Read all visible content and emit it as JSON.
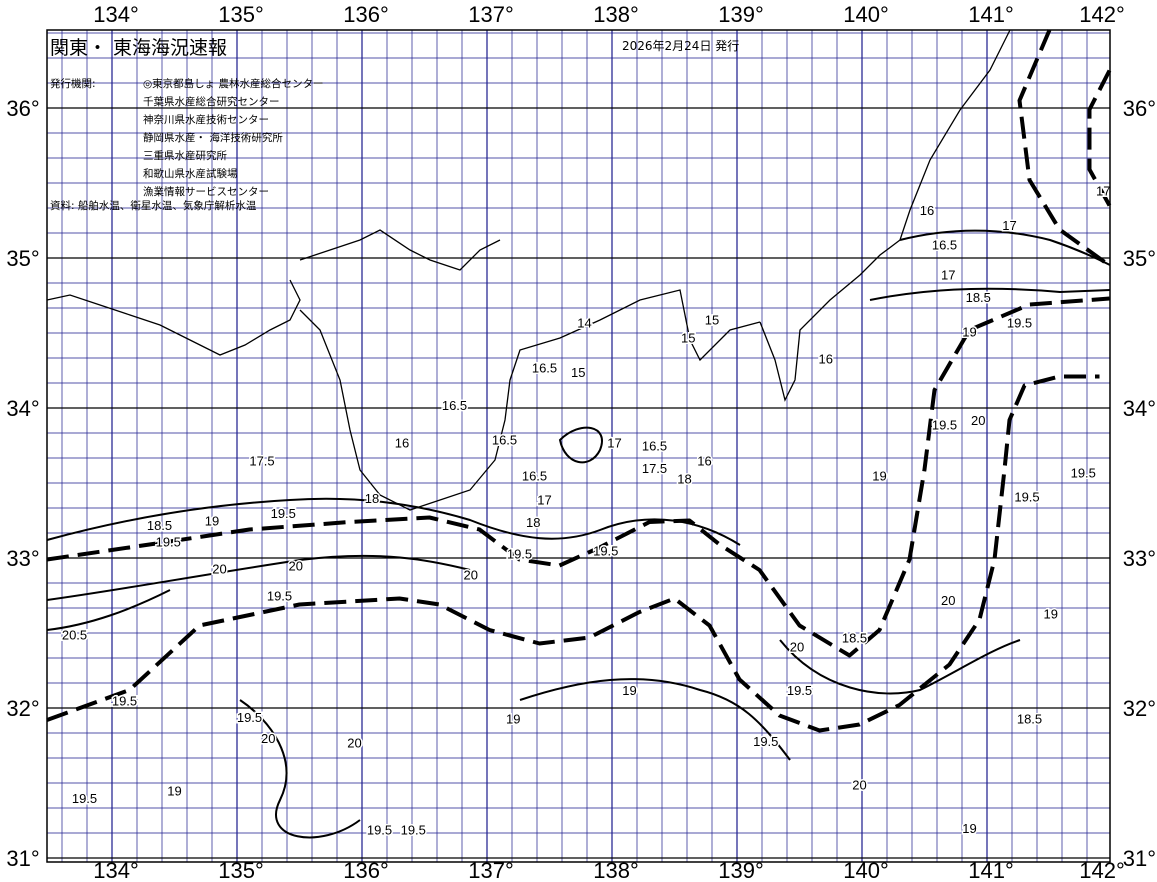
{
  "header": {
    "title": "関東・ 東海海況速報",
    "issue_date": "2026年2月24日 発行",
    "issuer_label": "発行機関:",
    "issuers": [
      "◎東京都島しょ 農林水産総合センター",
      "千葉県水産総合研究センター",
      "神奈川県水産技術センター",
      "静岡県水産・ 海洋技術研究所",
      "三重県水産研究所",
      "和歌山県水産試験場",
      "漁業情報サービスセンター"
    ],
    "sources": "資料: 船舶水温、衛星水温、気象庁解析水温"
  },
  "map": {
    "lon_range": [
      133.48,
      142.0
    ],
    "lat_range": [
      30.99,
      36.52
    ],
    "lon_labels": [
      "134°",
      "135°",
      "136°",
      "137°",
      "138°",
      "139°",
      "140°",
      "141°",
      "142°"
    ],
    "lon_values": [
      134,
      135,
      136,
      137,
      138,
      139,
      140,
      141,
      142
    ],
    "lat_labels": [
      "36°",
      "35°",
      "34°",
      "33°",
      "32°",
      "31°"
    ],
    "lat_values": [
      36,
      35,
      34,
      33,
      32,
      31
    ],
    "grid_color": "#1a1a8c",
    "kuroshio_paths": [
      [
        [
          133.48,
          31.92
        ],
        [
          134.14,
          32.12
        ],
        [
          134.7,
          32.55
        ],
        [
          135.5,
          32.69
        ],
        [
          136.3,
          32.73
        ],
        [
          136.62,
          32.69
        ],
        [
          137.02,
          32.52
        ],
        [
          137.42,
          32.43
        ],
        [
          137.82,
          32.47
        ],
        [
          138.22,
          32.64
        ],
        [
          138.5,
          32.73
        ],
        [
          138.78,
          32.55
        ],
        [
          139.02,
          32.19
        ],
        [
          139.34,
          31.95
        ],
        [
          139.66,
          31.85
        ],
        [
          139.98,
          31.89
        ],
        [
          140.3,
          32.02
        ],
        [
          140.7,
          32.29
        ],
        [
          140.94,
          32.59
        ],
        [
          141.06,
          32.99
        ],
        [
          141.14,
          33.59
        ],
        [
          141.18,
          33.92
        ],
        [
          141.3,
          34.15
        ],
        [
          141.58,
          34.21
        ],
        [
          141.9,
          34.21
        ]
      ],
      [
        [
          133.48,
          32.99
        ],
        [
          134.3,
          33.09
        ],
        [
          135.1,
          33.19
        ],
        [
          135.9,
          33.24
        ],
        [
          136.54,
          33.27
        ],
        [
          136.94,
          33.19
        ],
        [
          137.26,
          32.99
        ],
        [
          137.58,
          32.95
        ],
        [
          137.9,
          33.07
        ],
        [
          138.3,
          33.24
        ],
        [
          138.62,
          33.25
        ],
        [
          138.86,
          33.09
        ],
        [
          139.18,
          32.92
        ],
        [
          139.5,
          32.55
        ],
        [
          139.9,
          32.35
        ],
        [
          140.14,
          32.52
        ],
        [
          140.38,
          32.99
        ],
        [
          140.5,
          33.59
        ],
        [
          140.58,
          34.12
        ],
        [
          140.86,
          34.52
        ],
        [
          141.34,
          34.69
        ],
        [
          141.98,
          34.73
        ]
      ],
      [
        [
          141.5,
          36.52
        ],
        [
          141.26,
          36.05
        ],
        [
          141.34,
          35.52
        ],
        [
          141.58,
          35.19
        ],
        [
          141.98,
          34.95
        ]
      ],
      [
        [
          141.98,
          36.25
        ],
        [
          141.82,
          35.99
        ],
        [
          141.82,
          35.59
        ],
        [
          141.98,
          35.35
        ]
      ]
    ],
    "isotherm_labels": [
      {
        "t": "14",
        "lon": 137.78,
        "lat": 34.57
      },
      {
        "t": "15",
        "lon": 138.61,
        "lat": 34.47
      },
      {
        "t": "15",
        "lon": 138.8,
        "lat": 34.59
      },
      {
        "t": "16",
        "lon": 139.71,
        "lat": 34.33
      },
      {
        "t": "16.5",
        "lon": 137.46,
        "lat": 34.27
      },
      {
        "t": "15",
        "lon": 137.73,
        "lat": 34.24
      },
      {
        "t": "16.5",
        "lon": 136.74,
        "lat": 34.02
      },
      {
        "t": "16",
        "lon": 136.32,
        "lat": 33.77
      },
      {
        "t": "16.5",
        "lon": 137.14,
        "lat": 33.79
      },
      {
        "t": "17.5",
        "lon": 135.2,
        "lat": 33.65
      },
      {
        "t": "17",
        "lon": 138.02,
        "lat": 33.77
      },
      {
        "t": "16.5",
        "lon": 138.34,
        "lat": 33.75
      },
      {
        "t": "17.5",
        "lon": 138.34,
        "lat": 33.6
      },
      {
        "t": "16",
        "lon": 138.74,
        "lat": 33.65
      },
      {
        "t": "18",
        "lon": 138.58,
        "lat": 33.53
      },
      {
        "t": "16.5",
        "lon": 137.38,
        "lat": 33.55
      },
      {
        "t": "17",
        "lon": 137.46,
        "lat": 33.39
      },
      {
        "t": "18",
        "lon": 136.08,
        "lat": 33.4
      },
      {
        "t": "18",
        "lon": 137.37,
        "lat": 33.24
      },
      {
        "t": "19",
        "lon": 134.8,
        "lat": 33.25
      },
      {
        "t": "19.5",
        "lon": 135.37,
        "lat": 33.3
      },
      {
        "t": "18.5",
        "lon": 134.38,
        "lat": 33.22
      },
      {
        "t": "19.5",
        "lon": 134.45,
        "lat": 33.11
      },
      {
        "t": "20",
        "lon": 134.86,
        "lat": 32.93
      },
      {
        "t": "20",
        "lon": 135.47,
        "lat": 32.95
      },
      {
        "t": "19.5",
        "lon": 135.34,
        "lat": 32.75
      },
      {
        "t": "19.5",
        "lon": 137.26,
        "lat": 33.03
      },
      {
        "t": "20",
        "lon": 136.87,
        "lat": 32.89
      },
      {
        "t": "19.5",
        "lon": 137.95,
        "lat": 33.05
      },
      {
        "t": "20",
        "lon": 139.48,
        "lat": 32.41
      },
      {
        "t": "19.5",
        "lon": 139.5,
        "lat": 32.12
      },
      {
        "t": "18.5",
        "lon": 139.94,
        "lat": 32.47
      },
      {
        "t": "19.5",
        "lon": 140.66,
        "lat": 33.89
      },
      {
        "t": "20",
        "lon": 140.93,
        "lat": 33.92
      },
      {
        "t": "19.5",
        "lon": 141.32,
        "lat": 33.41
      },
      {
        "t": "19.5",
        "lon": 141.77,
        "lat": 33.57
      },
      {
        "t": "19",
        "lon": 141.51,
        "lat": 32.63
      },
      {
        "t": "18.5",
        "lon": 141.34,
        "lat": 31.93
      },
      {
        "t": "19.5",
        "lon": 139.23,
        "lat": 31.78
      },
      {
        "t": "20",
        "lon": 135.25,
        "lat": 31.8
      },
      {
        "t": "19.5",
        "lon": 135.1,
        "lat": 31.94
      },
      {
        "t": "20",
        "lon": 135.94,
        "lat": 31.77
      },
      {
        "t": "19.5",
        "lon": 136.14,
        "lat": 31.19
      },
      {
        "t": "19.5",
        "lon": 136.41,
        "lat": 31.19
      },
      {
        "t": "19",
        "lon": 137.21,
        "lat": 31.93
      },
      {
        "t": "19",
        "lon": 134.5,
        "lat": 31.45
      },
      {
        "t": "19.5",
        "lon": 133.78,
        "lat": 31.4
      },
      {
        "t": "20.5",
        "lon": 133.7,
        "lat": 32.49
      },
      {
        "t": "19.5",
        "lon": 134.1,
        "lat": 32.05
      },
      {
        "t": "17",
        "lon": 140.69,
        "lat": 34.89
      },
      {
        "t": "16.5",
        "lon": 140.66,
        "lat": 35.09
      },
      {
        "t": "17",
        "lon": 141.18,
        "lat": 35.22
      },
      {
        "t": "16",
        "lon": 140.52,
        "lat": 35.32
      },
      {
        "t": "19",
        "lon": 140.86,
        "lat": 34.51
      },
      {
        "t": "19.5",
        "lon": 141.26,
        "lat": 34.57
      },
      {
        "t": "18.5",
        "lon": 140.93,
        "lat": 34.74
      },
      {
        "t": "17",
        "lon": 141.93,
        "lat": 35.45
      },
      {
        "t": "20",
        "lon": 140.69,
        "lat": 32.72
      },
      {
        "t": "19",
        "lon": 140.14,
        "lat": 33.55
      },
      {
        "t": "20",
        "lon": 139.98,
        "lat": 31.49
      },
      {
        "t": "19",
        "lon": 140.86,
        "lat": 31.2
      },
      {
        "t": "19",
        "lon": 138.14,
        "lat": 32.12
      }
    ]
  }
}
